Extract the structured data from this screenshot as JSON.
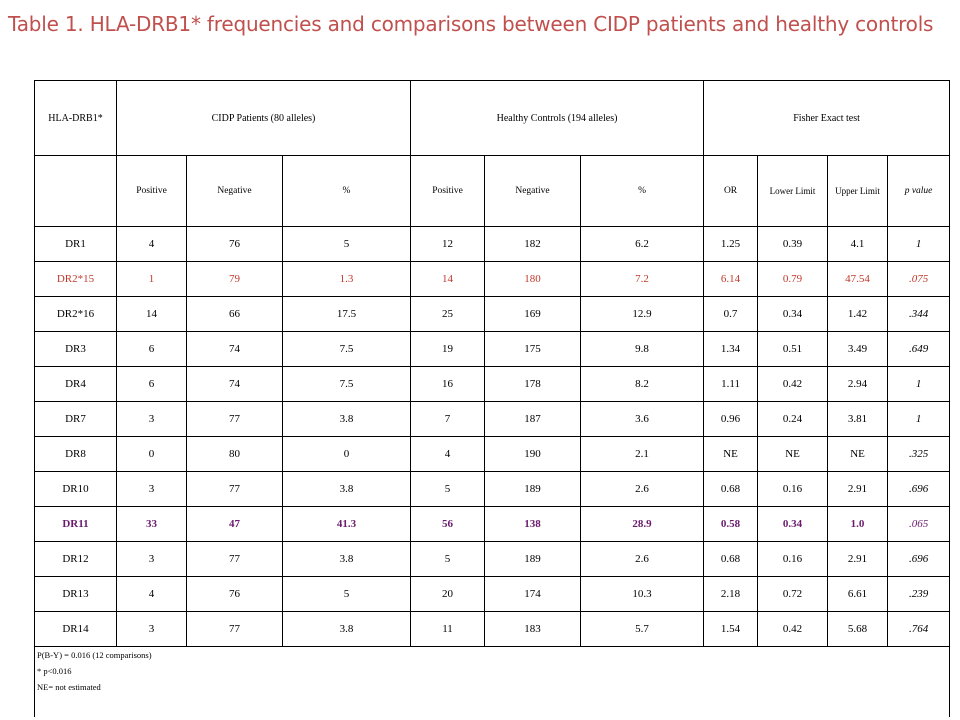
{
  "title": "Table 1. HLA-DRB1* frequencies and comparisons between CIDP patients and healthy controls",
  "header": {
    "col_label": "HLA-DRB1*",
    "group1": "CIDP Patients (80 alleles)",
    "group2": "Healthy Controls (194 alleles)",
    "group3": "Fisher Exact test",
    "sub": {
      "p_pos": "Positive",
      "p_neg": "Negative",
      "p_pct": "%",
      "c_pos": "Positive",
      "c_neg": "Negative",
      "c_pct": "%",
      "or": "OR",
      "lower": "Lower Limit",
      "upper": "Upper Limit",
      "pvalue": "p value"
    }
  },
  "rows": [
    [
      "DR1",
      "4",
      "76",
      "5",
      "12",
      "182",
      "6.2",
      "1.25",
      "0.39",
      "4.1",
      "1"
    ],
    [
      "DR2*15",
      "1",
      "79",
      "1.3",
      "14",
      "180",
      "7.2",
      "6.14",
      "0.79",
      "47.54",
      ".075"
    ],
    [
      "DR2*16",
      "14",
      "66",
      "17.5",
      "25",
      "169",
      "12.9",
      "0.7",
      "0.34",
      "1.42",
      ".344"
    ],
    [
      "DR3",
      "6",
      "74",
      "7.5",
      "19",
      "175",
      "9.8",
      "1.34",
      "0.51",
      "3.49",
      ".649"
    ],
    [
      "DR4",
      "6",
      "74",
      "7.5",
      "16",
      "178",
      "8.2",
      "1.11",
      "0.42",
      "2.94",
      "1"
    ],
    [
      "DR7",
      "3",
      "77",
      "3.8",
      "7",
      "187",
      "3.6",
      "0.96",
      "0.24",
      "3.81",
      "1"
    ],
    [
      "DR8",
      "0",
      "80",
      "0",
      "4",
      "190",
      "2.1",
      "NE",
      "NE",
      "NE",
      ".325"
    ],
    [
      "DR10",
      "3",
      "77",
      "3.8",
      "5",
      "189",
      "2.6",
      "0.68",
      "0.16",
      "2.91",
      ".696"
    ],
    [
      "DR11",
      "33",
      "47",
      "41.3",
      "56",
      "138",
      "28.9",
      "0.58",
      "0.34",
      "1.0",
      ".065"
    ],
    [
      "DR12",
      "3",
      "77",
      "3.8",
      "5",
      "189",
      "2.6",
      "0.68",
      "0.16",
      "2.91",
      ".696"
    ],
    [
      "DR13",
      "4",
      "76",
      "5",
      "20",
      "174",
      "10.3",
      "2.18",
      "0.72",
      "6.61",
      ".239"
    ],
    [
      "DR14",
      "3",
      "77",
      "3.8",
      "11",
      "183",
      "5.7",
      "1.54",
      "0.42",
      "5.68",
      ".764"
    ]
  ],
  "row_styles": [
    "",
    "red",
    "",
    "",
    "",
    "",
    "",
    "",
    "purple",
    "",
    "",
    ""
  ],
  "footnotes": [
    "P(B-Y) = 0.016 (12 comparisons)",
    "* p<0.016",
    "NE= not estimated"
  ],
  "colors": {
    "title": "#c0504d",
    "highlight_red": "#c0392b",
    "highlight_purple": "#6a1b6e"
  }
}
